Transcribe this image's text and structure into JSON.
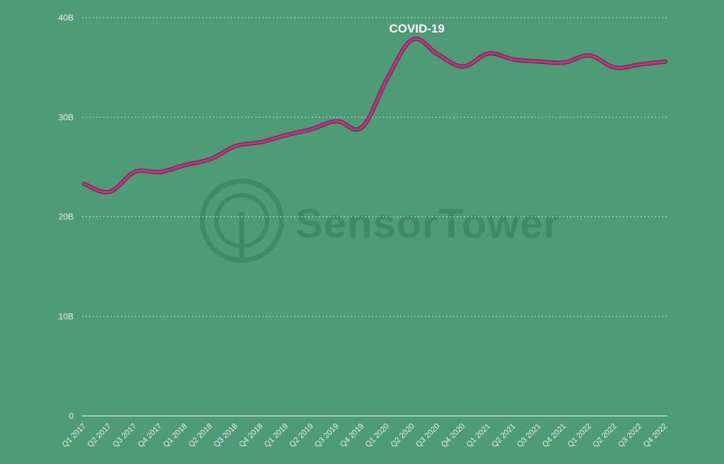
{
  "chart_data": {
    "type": "line",
    "title": "",
    "xlabel": "",
    "ylabel": "",
    "categories": [
      "Q1 2017",
      "Q2 2017",
      "Q3 2017",
      "Q4 2017",
      "Q1 2018",
      "Q2 2018",
      "Q3 2018",
      "Q4 2018",
      "Q1 2019",
      "Q2 2019",
      "Q3 2019",
      "Q4 2019",
      "Q1 2020",
      "Q2 2020",
      "Q3 2020",
      "Q4 2020",
      "Q1 2021",
      "Q2 2021",
      "Q3 2021",
      "Q4 2021",
      "Q1 2022",
      "Q2 2022",
      "Q3 2022",
      "Q4 2022"
    ],
    "series": [
      {
        "name": "",
        "values": [
          23.3,
          22.5,
          24.5,
          24.5,
          25.2,
          25.8,
          27.1,
          27.5,
          28.2,
          28.8,
          29.6,
          29.0,
          33.9,
          37.8,
          36.3,
          35.1,
          36.4,
          35.8,
          35.6,
          35.5,
          36.2,
          35.0,
          35.3,
          35.6
        ]
      }
    ],
    "ylim": [
      0,
      40
    ],
    "yticks": [
      {
        "value": 0,
        "label": "0"
      },
      {
        "value": 10,
        "label": "10B"
      },
      {
        "value": 20,
        "label": "20B"
      },
      {
        "value": 30,
        "label": "30B"
      },
      {
        "value": 40,
        "label": "40B"
      }
    ],
    "grid": true,
    "annotation": {
      "text": "COVID-19",
      "category": "Q2 2020"
    },
    "watermark": "SensorTower",
    "colors": {
      "background": "#4e9c75",
      "line": "#c2337e",
      "line_shadow": "#6c2a5c",
      "grid": "#b9dcc6",
      "text": "#e6f2ea",
      "watermark": "#3f8a64"
    }
  }
}
